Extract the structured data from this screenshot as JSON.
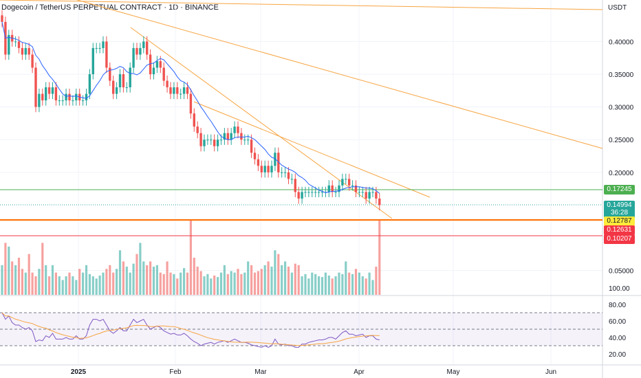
{
  "title": "Dogecoin / TetherUS PERPETUAL CONTRACT · 1D · BINANCE",
  "unit": "USDT",
  "colors": {
    "up": "#26a69a",
    "down": "#ef5350",
    "trend": "#f7a440",
    "ma": "#2962ff",
    "rsi": "#7e57c2",
    "rsi_ma": "#f7a440",
    "green_line": "#4caf50",
    "orange_line": "#ff6d00",
    "red_line": "#f23645",
    "yellow_tag": "#ffeb3b"
  },
  "tags": {
    "resistance": "0.17245",
    "last_price": "0.14994",
    "countdown": "36:28",
    "support_a": "0.12787",
    "support_b": "0.12631",
    "support_c": "0.10207"
  },
  "chart_data": [
    {
      "type": "candlestick",
      "name": "price",
      "yaxis": {
        "ticks": [
          "0.40000",
          "0.35000",
          "0.30000",
          "0.25000",
          "0.20000",
          "0.05000"
        ],
        "tick_values": [
          0.4,
          0.35,
          0.3,
          0.25,
          0.2,
          0.05
        ]
      },
      "xaxis": {
        "ticks": [
          "2025",
          "Feb",
          "Mar",
          "Apr",
          "May",
          "Jun"
        ]
      },
      "horizontal_levels": [
        0.17245,
        0.14994,
        0.12787,
        0.12631,
        0.10207
      ],
      "closes": [
        0.43,
        0.38,
        0.41,
        0.4,
        0.4,
        0.39,
        0.38,
        0.39,
        0.38,
        0.36,
        0.3,
        0.32,
        0.31,
        0.33,
        0.32,
        0.33,
        0.31,
        0.31,
        0.31,
        0.32,
        0.31,
        0.31,
        0.32,
        0.31,
        0.31,
        0.32,
        0.35,
        0.39,
        0.39,
        0.39,
        0.4,
        0.36,
        0.34,
        0.32,
        0.33,
        0.35,
        0.33,
        0.33,
        0.36,
        0.39,
        0.38,
        0.39,
        0.4,
        0.38,
        0.35,
        0.36,
        0.37,
        0.36,
        0.34,
        0.33,
        0.32,
        0.33,
        0.32,
        0.32,
        0.33,
        0.32,
        0.29,
        0.27,
        0.26,
        0.24,
        0.25,
        0.25,
        0.25,
        0.24,
        0.25,
        0.25,
        0.26,
        0.25,
        0.26,
        0.27,
        0.26,
        0.25,
        0.25,
        0.25,
        0.23,
        0.22,
        0.21,
        0.2,
        0.21,
        0.2,
        0.21,
        0.23,
        0.2,
        0.2,
        0.2,
        0.19,
        0.19,
        0.17,
        0.16,
        0.17,
        0.17,
        0.17,
        0.17,
        0.17,
        0.17,
        0.17,
        0.17,
        0.18,
        0.17,
        0.17,
        0.18,
        0.19,
        0.19,
        0.18,
        0.18,
        0.17,
        0.17,
        0.17,
        0.16,
        0.17,
        0.17,
        0.16,
        0.15
      ],
      "volume_rel": [
        40,
        70,
        65,
        45,
        40,
        50,
        35,
        30,
        55,
        30,
        25,
        35,
        70,
        40,
        25,
        40,
        30,
        25,
        20,
        25,
        30,
        25,
        20,
        35,
        30,
        40,
        28,
        25,
        22,
        26,
        30,
        35,
        40,
        30,
        35,
        60,
        45,
        38,
        30,
        42,
        55,
        70,
        45,
        40,
        45,
        38,
        40,
        30,
        28,
        45,
        30,
        28,
        22,
        30,
        36,
        30,
        100,
        50,
        38,
        32,
        25,
        28,
        22,
        26,
        24,
        30,
        40,
        28,
        32,
        30,
        35,
        28,
        30,
        45,
        40,
        30,
        32,
        35,
        40,
        45,
        38,
        60,
        55,
        40,
        45,
        38,
        30,
        42,
        40,
        25,
        28,
        22,
        30,
        28,
        25,
        24,
        30,
        26,
        22,
        25,
        30,
        28,
        45,
        30,
        28,
        35,
        30,
        25,
        22,
        30,
        20,
        38,
        100
      ],
      "ma_period": 10
    },
    {
      "type": "line",
      "name": "RSI",
      "yaxis": {
        "ticks": [
          "100.00",
          "80.00",
          "60.00",
          "40.00",
          "20.00"
        ],
        "tick_values": [
          100,
          80,
          60,
          40,
          20
        ]
      },
      "levels": [
        70,
        50,
        30
      ],
      "values": [
        70,
        62,
        66,
        58,
        55,
        55,
        52,
        50,
        52,
        48,
        35,
        37,
        36,
        42,
        40,
        45,
        38,
        38,
        38,
        40,
        38,
        38,
        42,
        38,
        38,
        42,
        55,
        62,
        62,
        60,
        62,
        55,
        48,
        45,
        48,
        52,
        48,
        48,
        55,
        62,
        58,
        60,
        62,
        55,
        50,
        52,
        54,
        52,
        48,
        46,
        44,
        45,
        43,
        43,
        45,
        42,
        38,
        35,
        33,
        30,
        32,
        33,
        34,
        32,
        34,
        35,
        36,
        34,
        36,
        38,
        36,
        34,
        34,
        33,
        31,
        30,
        29,
        28,
        30,
        28,
        30,
        38,
        32,
        31,
        32,
        30,
        30,
        28,
        28,
        32,
        32,
        34,
        35,
        36,
        37,
        37,
        38,
        40,
        40,
        38,
        42,
        46,
        48,
        44,
        44,
        42,
        43,
        44,
        40,
        42,
        42,
        38,
        37
      ]
    }
  ]
}
